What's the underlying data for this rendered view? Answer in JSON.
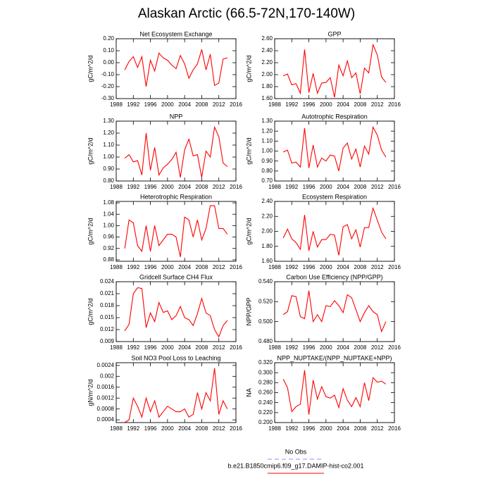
{
  "title": "Alaskan Arctic (66.5-72N,170-140W)",
  "legend": [
    {
      "name": "No Obs",
      "color": "#8c8cff",
      "dash": true
    },
    {
      "name": "b.e21.B1850cmip6.f09_g17.DAMIP-hist-co2.001",
      "color": "#ff0000"
    }
  ],
  "chart_data": [
    {
      "type": "line",
      "title": "Net Ecosystem Exchange",
      "ylabel": "gC/m^2/d",
      "color": "#ff0000",
      "x": [
        1990,
        1991,
        1992,
        1993,
        1994,
        1995,
        1996,
        1997,
        1998,
        1999,
        2000,
        2001,
        2002,
        2003,
        2004,
        2005,
        2006,
        2007,
        2008,
        2009,
        2010,
        2011,
        2012,
        2013,
        2014
      ],
      "values": [
        -0.06,
        0.01,
        0.05,
        -0.04,
        0.05,
        -0.2,
        0.02,
        -0.07,
        0.08,
        0.04,
        0.02,
        -0.02,
        -0.05,
        0.06,
        -0.01,
        -0.13,
        -0.06,
        -0.01,
        0.11,
        -0.06,
        0.07,
        -0.19,
        -0.17,
        0.03,
        0.04
      ],
      "xlim": [
        1988,
        2016
      ],
      "xticks": [
        1988,
        1992,
        1996,
        2000,
        2004,
        2008,
        2012,
        2016
      ],
      "ylim": [
        -0.3,
        0.2
      ],
      "yticks": [
        {
          "value": -0.3,
          "label": "-0.30"
        },
        {
          "value": -0.2,
          "label": "-0.20"
        },
        {
          "value": -0.1,
          "label": "-0.10"
        },
        {
          "value": 0,
          "label": "0.00"
        },
        {
          "value": 0.1,
          "label": "0.10"
        },
        {
          "value": 0.2,
          "label": "0.20"
        }
      ]
    },
    {
      "type": "line",
      "title": "GPP",
      "ylabel": "gC/m^2/d",
      "color": "#ff0000",
      "x": [
        1990,
        1991,
        1992,
        1993,
        1994,
        1995,
        1996,
        1997,
        1998,
        1999,
        2000,
        2001,
        2002,
        2003,
        2004,
        2005,
        2006,
        2007,
        2008,
        2009,
        2010,
        2011,
        2012,
        2013,
        2014
      ],
      "values": [
        1.98,
        2.01,
        1.83,
        1.85,
        1.69,
        2.42,
        1.7,
        2.02,
        1.69,
        1.86,
        1.87,
        1.95,
        1.62,
        2.16,
        1.98,
        2.23,
        1.95,
        2.03,
        1.68,
        2.11,
        2.03,
        2.5,
        2.33,
        1.96,
        1.87
      ],
      "xlim": [
        1988,
        2016
      ],
      "xticks": [
        1988,
        1992,
        1996,
        2000,
        2004,
        2008,
        2012,
        2016
      ],
      "ylim": [
        1.6,
        2.6
      ],
      "yticks": [
        {
          "value": 1.6,
          "label": "1.60"
        },
        {
          "value": 1.8,
          "label": "1.80"
        },
        {
          "value": 2.0,
          "label": "2.00"
        },
        {
          "value": 2.2,
          "label": "2.20"
        },
        {
          "value": 2.4,
          "label": "2.40"
        },
        {
          "value": 2.6,
          "label": "2.60"
        }
      ]
    },
    {
      "type": "line",
      "title": "NPP",
      "ylabel": "gC/m^2/d",
      "color": "#ff0000",
      "x": [
        1990,
        1991,
        1992,
        1993,
        1994,
        1995,
        1996,
        1997,
        1998,
        1999,
        2000,
        2001,
        2002,
        2003,
        2004,
        2005,
        2006,
        2007,
        2008,
        2009,
        2010,
        2011,
        2012,
        2013,
        2014
      ],
      "values": [
        0.99,
        1.02,
        0.96,
        0.97,
        0.85,
        1.2,
        0.89,
        1.08,
        0.85,
        0.91,
        0.94,
        0.98,
        1.04,
        0.83,
        1.06,
        1.15,
        1.01,
        1.02,
        0.83,
        1.05,
        1.0,
        1.25,
        1.17,
        0.95,
        0.92
      ],
      "xlim": [
        1988,
        2016
      ],
      "xticks": [
        1988,
        1992,
        1996,
        2000,
        2004,
        2008,
        2012,
        2016
      ],
      "ylim": [
        0.8,
        1.3
      ],
      "yticks": [
        {
          "value": 0.8,
          "label": "0.80"
        },
        {
          "value": 0.9,
          "label": "0.90"
        },
        {
          "value": 1.0,
          "label": "1.00"
        },
        {
          "value": 1.1,
          "label": "1.10"
        },
        {
          "value": 1.2,
          "label": "1.20"
        },
        {
          "value": 1.3,
          "label": "1.30"
        }
      ]
    },
    {
      "type": "line",
      "title": "Autotrophic Respiration",
      "ylabel": "gC/m^2/d",
      "color": "#ff0000",
      "x": [
        1990,
        1991,
        1992,
        1993,
        1994,
        1995,
        1996,
        1997,
        1998,
        1999,
        2000,
        2001,
        2002,
        2003,
        2004,
        2005,
        2006,
        2007,
        2008,
        2009,
        2010,
        2011,
        2012,
        2013,
        2014
      ],
      "values": [
        0.99,
        1.01,
        0.88,
        0.89,
        0.84,
        1.23,
        0.83,
        1.06,
        0.84,
        0.93,
        0.9,
        0.96,
        0.95,
        0.8,
        1.03,
        1.08,
        0.92,
        1.02,
        0.84,
        1.05,
        0.97,
        1.24,
        1.16,
        1.01,
        0.94
      ],
      "xlim": [
        1988,
        2016
      ],
      "xticks": [
        1988,
        1992,
        1996,
        2000,
        2004,
        2008,
        2012,
        2016
      ],
      "ylim": [
        0.7,
        1.3
      ],
      "yticks": [
        {
          "value": 0.7,
          "label": "0.70"
        },
        {
          "value": 0.8,
          "label": "0.80"
        },
        {
          "value": 0.9,
          "label": "0.90"
        },
        {
          "value": 1.0,
          "label": "1.00"
        },
        {
          "value": 1.1,
          "label": "1.10"
        },
        {
          "value": 1.2,
          "label": "1.20"
        },
        {
          "value": 1.3,
          "label": "1.30"
        }
      ]
    },
    {
      "type": "line",
      "title": "Heterotrophic Respiration",
      "ylabel": "gC/m^2/d",
      "color": "#ff0000",
      "x": [
        1990,
        1991,
        1992,
        1993,
        1994,
        1995,
        1996,
        1997,
        1998,
        1999,
        2000,
        2001,
        2002,
        2003,
        2004,
        2005,
        2006,
        2007,
        2008,
        2009,
        2010,
        2011,
        2012,
        2013,
        2014
      ],
      "values": [
        0.92,
        1.02,
        1.01,
        0.93,
        0.91,
        1.0,
        0.91,
        1.0,
        0.93,
        0.95,
        0.97,
        0.97,
        0.96,
        0.89,
        1.03,
        1.02,
        0.96,
        1.02,
        0.95,
        0.99,
        1.07,
        1.07,
        0.99,
        0.99,
        0.97
      ],
      "xlim": [
        1988,
        2016
      ],
      "xticks": [
        1988,
        1992,
        1996,
        2000,
        2004,
        2008,
        2012,
        2016
      ],
      "ylim": [
        0.875,
        1.085
      ],
      "yticks": [
        {
          "value": 0.88,
          "label": "0.88"
        },
        {
          "value": 0.92,
          "label": "0.92"
        },
        {
          "value": 0.96,
          "label": "0.96"
        },
        {
          "value": 1.0,
          "label": "1.00"
        },
        {
          "value": 1.04,
          "label": "1.04"
        },
        {
          "value": 1.08,
          "label": "1.08"
        }
      ]
    },
    {
      "type": "line",
      "title": "Ecosystem Respiration",
      "ylabel": "gC/m^2/d",
      "color": "#ff0000",
      "x": [
        1990,
        1991,
        1992,
        1993,
        1994,
        1995,
        1996,
        1997,
        1998,
        1999,
        2000,
        2001,
        2002,
        2003,
        2004,
        2005,
        2006,
        2007,
        2008,
        2009,
        2010,
        2011,
        2012,
        2013,
        2014
      ],
      "values": [
        1.91,
        2.03,
        1.9,
        1.85,
        1.76,
        2.22,
        1.74,
        2.0,
        1.79,
        1.89,
        1.89,
        1.96,
        1.95,
        1.68,
        2.06,
        2.09,
        1.9,
        2.02,
        1.79,
        2.05,
        2.05,
        2.31,
        2.15,
        1.99,
        1.9
      ],
      "xlim": [
        1988,
        2016
      ],
      "xticks": [
        1988,
        1992,
        1996,
        2000,
        2004,
        2008,
        2012,
        2016
      ],
      "ylim": [
        1.6,
        2.4
      ],
      "yticks": [
        {
          "value": 1.6,
          "label": "1.60"
        },
        {
          "value": 1.8,
          "label": "1.80"
        },
        {
          "value": 2.0,
          "label": "2.00"
        },
        {
          "value": 2.2,
          "label": "2.20"
        },
        {
          "value": 2.4,
          "label": "2.40"
        }
      ]
    },
    {
      "type": "line",
      "title": "Gridcell Surface CH4 Flux",
      "ylabel": "gC/m^2/d",
      "color": "#ff0000",
      "x": [
        1990,
        1991,
        1992,
        1993,
        1994,
        1995,
        1996,
        1997,
        1998,
        1999,
        2000,
        2001,
        2002,
        2003,
        2004,
        2005,
        2006,
        2007,
        2008,
        2009,
        2010,
        2011,
        2012,
        2013,
        2014
      ],
      "values": [
        0.0117,
        0.0133,
        0.021,
        0.0225,
        0.0223,
        0.0125,
        0.0162,
        0.014,
        0.0188,
        0.0163,
        0.0167,
        0.0145,
        0.0155,
        0.0178,
        0.015,
        0.0145,
        0.013,
        0.016,
        0.0198,
        0.0162,
        0.0155,
        0.012,
        0.0102,
        0.013,
        0.0143
      ],
      "xlim": [
        1988,
        2016
      ],
      "xticks": [
        1988,
        1992,
        1996,
        2000,
        2004,
        2008,
        2012,
        2016
      ],
      "ylim": [
        0.009,
        0.024
      ],
      "yticks": [
        0.009,
        0.012,
        0.015,
        0.018,
        0.021,
        0.024
      ]
    },
    {
      "type": "line",
      "title": "Carbon Use Efficiency (NPP/GPP)",
      "ylabel": "NPP/GPP",
      "color": "#ff0000",
      "x": [
        1990,
        1991,
        1992,
        1993,
        1994,
        1995,
        1996,
        1997,
        1998,
        1999,
        2000,
        2001,
        2002,
        2003,
        2004,
        2005,
        2006,
        2007,
        2008,
        2009,
        2010,
        2011,
        2012,
        2013,
        2014
      ],
      "values": [
        0.507,
        0.51,
        0.526,
        0.525,
        0.505,
        0.503,
        0.531,
        0.5,
        0.507,
        0.5,
        0.516,
        0.515,
        0.521,
        0.516,
        0.509,
        0.527,
        0.524,
        0.512,
        0.5,
        0.509,
        0.516,
        0.51,
        0.507,
        0.49,
        0.5
      ],
      "xlim": [
        1988,
        2016
      ],
      "xticks": [
        1988,
        1992,
        1996,
        2000,
        2004,
        2008,
        2012,
        2016
      ],
      "ylim": [
        0.48,
        0.54
      ],
      "yticks": [
        {
          "value": 0.48,
          "label": "0.480"
        },
        {
          "value": 0.5,
          "label": "0.500"
        },
        {
          "value": 0.52,
          "label": "0.520"
        },
        {
          "value": 0.54,
          "label": "0.540"
        }
      ]
    },
    {
      "type": "line",
      "title": "Soil NO3 Pool Loss to Leaching",
      "ylabel": "gN/m^2/d",
      "color": "#ff0000",
      "x": [
        1990,
        1991,
        1992,
        1993,
        1994,
        1995,
        1996,
        1997,
        1998,
        1999,
        2000,
        2001,
        2002,
        2003,
        2004,
        2005,
        2006,
        2007,
        2008,
        2009,
        2010,
        2011,
        2012,
        2013,
        2014
      ],
      "values": [
        0.0003,
        0.0004,
        0.0012,
        0.0009,
        0.0005,
        0.0012,
        0.0007,
        0.0011,
        0.0005,
        0.0007,
        0.0009,
        0.0008,
        0.0007,
        0.0007,
        0.0008,
        0.0005,
        0.0006,
        0.0014,
        0.0008,
        0.0014,
        0.0011,
        0.0023,
        0.0006,
        0.0011,
        0.0008
      ],
      "xlim": [
        1988,
        2016
      ],
      "xticks": [
        1988,
        1992,
        1996,
        2000,
        2004,
        2008,
        2012,
        2016
      ],
      "ylim": [
        0.0003,
        0.0025
      ],
      "yticks": [
        0.0004,
        0.0008,
        0.0012,
        0.0016,
        0.002,
        0.0024
      ]
    },
    {
      "type": "line",
      "title": "NPP_NUPTAKE/(NPP_NUPTAKE+NPP)",
      "ylabel": "NA",
      "color": "#ff0000",
      "x": [
        1990,
        1991,
        1992,
        1993,
        1994,
        1995,
        1996,
        1997,
        1998,
        1999,
        2000,
        2001,
        2002,
        2003,
        2004,
        2005,
        2006,
        2007,
        2008,
        2009,
        2010,
        2011,
        2012,
        2013,
        2014
      ],
      "values": [
        0.287,
        0.27,
        0.222,
        0.232,
        0.237,
        0.305,
        0.216,
        0.285,
        0.247,
        0.272,
        0.252,
        0.249,
        0.255,
        0.23,
        0.268,
        0.245,
        0.232,
        0.25,
        0.232,
        0.28,
        0.244,
        0.29,
        0.281,
        0.283,
        0.277
      ],
      "xlim": [
        1988,
        2016
      ],
      "xticks": [
        1988,
        1992,
        1996,
        2000,
        2004,
        2008,
        2012,
        2016
      ],
      "ylim": [
        0.2,
        0.32
      ],
      "yticks": [
        {
          "value": 0.2,
          "label": "0.200"
        },
        {
          "value": 0.22,
          "label": "0.220"
        },
        {
          "value": 0.24,
          "label": "0.240"
        },
        {
          "value": 0.26,
          "label": "0.260"
        },
        {
          "value": 0.28,
          "label": "0.280"
        },
        {
          "value": 0.3,
          "label": "0.300"
        },
        {
          "value": 0.32,
          "label": "0.320"
        }
      ]
    }
  ]
}
